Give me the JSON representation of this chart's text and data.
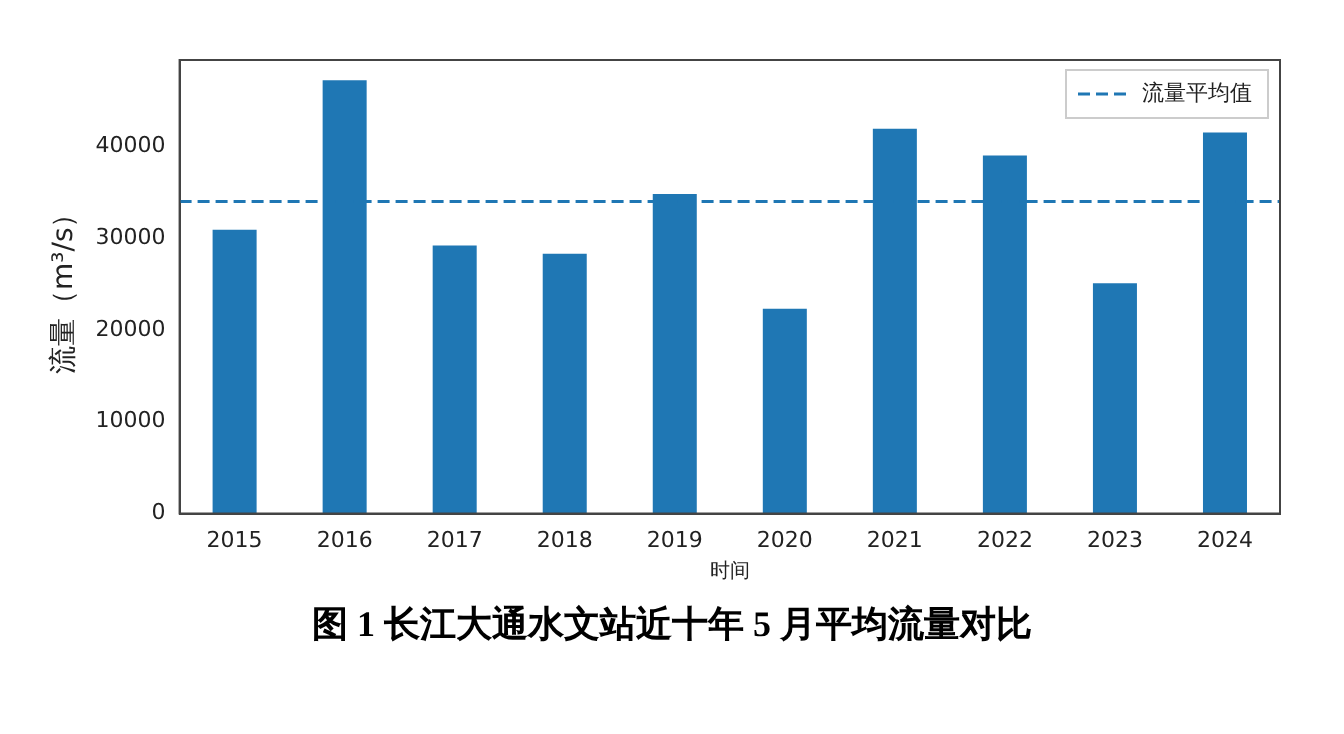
{
  "chart_data": {
    "type": "bar",
    "title": "图 1  长江大通水文站近十年 5 月平均流量对比",
    "xlabel": "时间",
    "ylabel": "流量（m³/s）",
    "categories": [
      "2015",
      "2016",
      "2017",
      "2018",
      "2019",
      "2020",
      "2021",
      "2022",
      "2023",
      "2024"
    ],
    "values": [
      30900,
      47200,
      29200,
      28300,
      34800,
      22300,
      41900,
      39000,
      25100,
      41500
    ],
    "color": "#1f77b4",
    "ylim": [
      0,
      49400
    ],
    "yticks": [
      0,
      10000,
      20000,
      30000,
      40000
    ],
    "ref_lines": [
      {
        "axis": "y",
        "value": 34000,
        "label": "流量平均值",
        "color": "#1f77b4",
        "line_style": "dashed"
      }
    ],
    "legend": "top right",
    "grid": false
  }
}
